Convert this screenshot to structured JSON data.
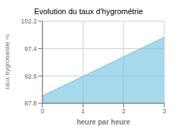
{
  "chart_data": {
    "type": "area",
    "title": "Evolution du taux d'hygrométrie",
    "xlabel": "heure par heure",
    "ylabel": "Taux hygrométrie %",
    "x": [
      0,
      3
    ],
    "values": [
      89.1,
      99.4
    ],
    "color": "#6cc0e0",
    "xlim": [
      0,
      3
    ],
    "ylim": [
      87.8,
      102.2
    ],
    "xticks": [
      0,
      1,
      2,
      3
    ],
    "yticks": [
      87.8,
      92.6,
      97.4,
      102.2
    ],
    "grid": true
  }
}
